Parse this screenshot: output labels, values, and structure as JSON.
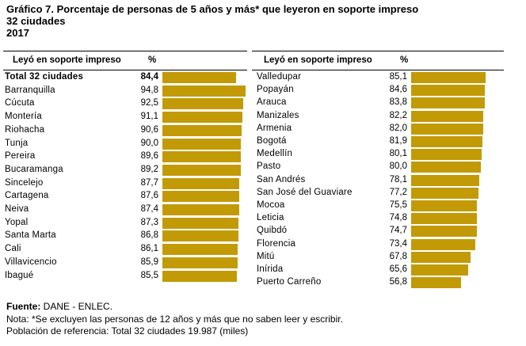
{
  "title": {
    "line1": "Gráfico 7. Porcentaje de personas de 5 años y más* que leyeron en soporte impreso",
    "line2": "32 ciudades",
    "line3": "2017"
  },
  "chart_data": [
    {
      "type": "bar",
      "orientation": "horizontal",
      "header_label": "Leyó en soporte impreso",
      "header_value": "%",
      "categories": [
        "Total 32 ciudades",
        "Barranquilla",
        "Cúcuta",
        "Montería",
        "Riohacha",
        "Tunja",
        "Pereira",
        "Bucaramanga",
        "Sincelejo",
        "Cartagena",
        "Neiva",
        "Yopal",
        "Santa Marta",
        "Cali",
        "Villavicencio",
        "Ibagué"
      ],
      "values": [
        84.4,
        94.8,
        92.5,
        91.1,
        90.6,
        90.0,
        89.6,
        89.2,
        87.7,
        87.6,
        87.4,
        87.3,
        86.8,
        86.1,
        85.9,
        85.5
      ],
      "labels": [
        "84,4",
        "94,8",
        "92,5",
        "91,1",
        "90,6",
        "90,0",
        "89,6",
        "89,2",
        "87,7",
        "87,6",
        "87,4",
        "87,3",
        "86,8",
        "86,1",
        "85,9",
        "85,5"
      ],
      "xlim": [
        0,
        100
      ],
      "bar_color": "#c29a06"
    },
    {
      "type": "bar",
      "orientation": "horizontal",
      "header_label": "Leyó en soporte impreso",
      "header_value": "%",
      "categories": [
        "Valledupar",
        "Popayán",
        "Arauca",
        "Manizales",
        "Armenia",
        "Bogotá",
        "Medellín",
        "Pasto",
        "San Andrés",
        "San José del Guaviare",
        "Mocoa",
        "Leticia",
        "Quibdó",
        "Florencia",
        "Mitú",
        "Inírida",
        "Puerto Carreño"
      ],
      "values": [
        85.1,
        84.6,
        83.8,
        82.2,
        82.0,
        81.9,
        80.1,
        80.0,
        78.1,
        77.2,
        75.5,
        74.8,
        74.7,
        73.4,
        67.8,
        65.6,
        56.8
      ],
      "labels": [
        "85,1",
        "84,6",
        "83,8",
        "82,2",
        "82,0",
        "81,9",
        "80,1",
        "80,0",
        "78,1",
        "77,2",
        "75,5",
        "74,8",
        "74,7",
        "73,4",
        "67,8",
        "65,6",
        "56,8"
      ],
      "xlim": [
        0,
        100
      ],
      "bar_color": "#c29a06"
    }
  ],
  "source": {
    "label": "Fuente:",
    "text": " DANE - ENLEC.",
    "note": "Nota: *Se excluyen las personas de 12 años y más que no saben leer y escribir.",
    "population": "Población de referencia: Total 32 ciudades 19.987 (miles)"
  }
}
